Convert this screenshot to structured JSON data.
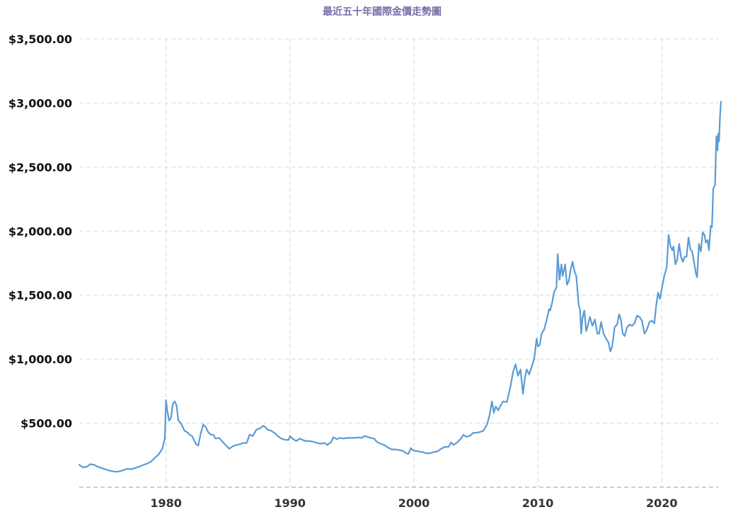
{
  "colors": {
    "title": "#7b6ca8",
    "line": "#5b9bd5",
    "grid": "#d9d9d9",
    "baseline": "#bdbdbd"
  },
  "chart_data": {
    "type": "line",
    "title": "最近五十年國際金價走勢圖",
    "xlabel": "",
    "ylabel": "",
    "grid": true,
    "x_range": [
      1973.0,
      2024.55
    ],
    "ylim": [
      0,
      3500
    ],
    "x_ticks": [
      {
        "value": 1980,
        "label": "1980"
      },
      {
        "value": 1990,
        "label": "1990"
      },
      {
        "value": 2000,
        "label": "2000"
      },
      {
        "value": 2010,
        "label": "2010"
      },
      {
        "value": 2020,
        "label": "2020"
      }
    ],
    "y_ticks": [
      {
        "value": 500,
        "label": "$500.00"
      },
      {
        "value": 1000,
        "label": "$1,000.00"
      },
      {
        "value": 1500,
        "label": "$1,500.00"
      },
      {
        "value": 2000,
        "label": "$2,000.00"
      },
      {
        "value": 2500,
        "label": "$2,500.00"
      },
      {
        "value": 3000,
        "label": "$3,000.00"
      },
      {
        "value": 3500,
        "label": "$3,500.00"
      }
    ],
    "series": [
      {
        "points": [
          [
            1973.0,
            175
          ],
          [
            1973.3,
            155
          ],
          [
            1973.6,
            160
          ],
          [
            1973.9,
            180
          ],
          [
            1974.2,
            175
          ],
          [
            1974.5,
            160
          ],
          [
            1974.8,
            150
          ],
          [
            1975.1,
            140
          ],
          [
            1975.4,
            130
          ],
          [
            1975.7,
            125
          ],
          [
            1976.0,
            120
          ],
          [
            1976.3,
            125
          ],
          [
            1976.6,
            135
          ],
          [
            1976.9,
            145
          ],
          [
            1977.2,
            140
          ],
          [
            1977.5,
            150
          ],
          [
            1977.8,
            160
          ],
          [
            1978.2,
            175
          ],
          [
            1978.5,
            185
          ],
          [
            1978.8,
            200
          ],
          [
            1979.1,
            230
          ],
          [
            1979.4,
            255
          ],
          [
            1979.7,
            300
          ],
          [
            1979.9,
            380
          ],
          [
            1980.0,
            680
          ],
          [
            1980.1,
            600
          ],
          [
            1980.25,
            520
          ],
          [
            1980.4,
            540
          ],
          [
            1980.55,
            650
          ],
          [
            1980.7,
            670
          ],
          [
            1980.85,
            640
          ],
          [
            1981.0,
            520
          ],
          [
            1981.2,
            500
          ],
          [
            1981.5,
            440
          ],
          [
            1981.7,
            430
          ],
          [
            1981.9,
            410
          ],
          [
            1982.1,
            400
          ],
          [
            1982.4,
            340
          ],
          [
            1982.6,
            325
          ],
          [
            1982.8,
            420
          ],
          [
            1983.0,
            490
          ],
          [
            1983.2,
            470
          ],
          [
            1983.4,
            430
          ],
          [
            1983.6,
            410
          ],
          [
            1983.8,
            410
          ],
          [
            1984.0,
            380
          ],
          [
            1984.3,
            385
          ],
          [
            1984.6,
            350
          ],
          [
            1984.9,
            320
          ],
          [
            1985.1,
            300
          ],
          [
            1985.4,
            320
          ],
          [
            1985.7,
            330
          ],
          [
            1985.95,
            335
          ],
          [
            1986.2,
            345
          ],
          [
            1986.5,
            345
          ],
          [
            1986.75,
            410
          ],
          [
            1987.0,
            400
          ],
          [
            1987.3,
            450
          ],
          [
            1987.6,
            460
          ],
          [
            1987.85,
            480
          ],
          [
            1988.0,
            470
          ],
          [
            1988.2,
            450
          ],
          [
            1988.5,
            440
          ],
          [
            1988.8,
            420
          ],
          [
            1989.0,
            400
          ],
          [
            1989.3,
            380
          ],
          [
            1989.6,
            370
          ],
          [
            1989.9,
            370
          ],
          [
            1990.0,
            400
          ],
          [
            1990.2,
            380
          ],
          [
            1990.5,
            360
          ],
          [
            1990.8,
            380
          ],
          [
            1991.0,
            370
          ],
          [
            1991.3,
            360
          ],
          [
            1991.6,
            360
          ],
          [
            1991.9,
            355
          ],
          [
            1992.2,
            345
          ],
          [
            1992.5,
            340
          ],
          [
            1992.8,
            345
          ],
          [
            1993.0,
            330
          ],
          [
            1993.3,
            350
          ],
          [
            1993.5,
            390
          ],
          [
            1993.8,
            375
          ],
          [
            1994.0,
            385
          ],
          [
            1994.3,
            380
          ],
          [
            1994.6,
            385
          ],
          [
            1994.9,
            385
          ],
          [
            1995.2,
            385
          ],
          [
            1995.5,
            388
          ],
          [
            1995.8,
            385
          ],
          [
            1996.0,
            400
          ],
          [
            1996.2,
            395
          ],
          [
            1996.5,
            385
          ],
          [
            1996.8,
            380
          ],
          [
            1997.0,
            355
          ],
          [
            1997.3,
            340
          ],
          [
            1997.6,
            330
          ],
          [
            1997.9,
            310
          ],
          [
            1998.2,
            295
          ],
          [
            1998.5,
            295
          ],
          [
            1998.8,
            290
          ],
          [
            1999.1,
            285
          ],
          [
            1999.4,
            265
          ],
          [
            1999.55,
            260
          ],
          [
            1999.75,
            305
          ],
          [
            1999.9,
            290
          ],
          [
            2000.1,
            285
          ],
          [
            2000.4,
            280
          ],
          [
            2000.7,
            275
          ],
          [
            2001.0,
            265
          ],
          [
            2001.3,
            265
          ],
          [
            2001.6,
            275
          ],
          [
            2001.9,
            280
          ],
          [
            2002.2,
            300
          ],
          [
            2002.5,
            315
          ],
          [
            2002.8,
            315
          ],
          [
            2003.0,
            350
          ],
          [
            2003.2,
            330
          ],
          [
            2003.5,
            350
          ],
          [
            2003.8,
            380
          ],
          [
            2004.0,
            410
          ],
          [
            2004.2,
            395
          ],
          [
            2004.5,
            400
          ],
          [
            2004.8,
            425
          ],
          [
            2005.0,
            425
          ],
          [
            2005.3,
            430
          ],
          [
            2005.6,
            440
          ],
          [
            2005.9,
            490
          ],
          [
            2006.1,
            560
          ],
          [
            2006.3,
            670
          ],
          [
            2006.45,
            580
          ],
          [
            2006.6,
            630
          ],
          [
            2006.8,
            600
          ],
          [
            2007.0,
            640
          ],
          [
            2007.2,
            670
          ],
          [
            2007.5,
            665
          ],
          [
            2007.8,
            790
          ],
          [
            2008.0,
            900
          ],
          [
            2008.2,
            960
          ],
          [
            2008.4,
            870
          ],
          [
            2008.6,
            920
          ],
          [
            2008.8,
            730
          ],
          [
            2008.95,
            850
          ],
          [
            2009.1,
            920
          ],
          [
            2009.3,
            880
          ],
          [
            2009.5,
            940
          ],
          [
            2009.7,
            1000
          ],
          [
            2009.9,
            1160
          ],
          [
            2010.0,
            1100
          ],
          [
            2010.15,
            1110
          ],
          [
            2010.3,
            1200
          ],
          [
            2010.5,
            1230
          ],
          [
            2010.7,
            1300
          ],
          [
            2010.9,
            1390
          ],
          [
            2011.0,
            1380
          ],
          [
            2011.15,
            1440
          ],
          [
            2011.3,
            1520
          ],
          [
            2011.5,
            1560
          ],
          [
            2011.6,
            1820
          ],
          [
            2011.75,
            1620
          ],
          [
            2011.9,
            1740
          ],
          [
            2012.0,
            1650
          ],
          [
            2012.2,
            1740
          ],
          [
            2012.35,
            1580
          ],
          [
            2012.5,
            1610
          ],
          [
            2012.65,
            1700
          ],
          [
            2012.8,
            1760
          ],
          [
            2012.95,
            1690
          ],
          [
            2013.1,
            1650
          ],
          [
            2013.3,
            1420
          ],
          [
            2013.4,
            1390
          ],
          [
            2013.5,
            1200
          ],
          [
            2013.6,
            1320
          ],
          [
            2013.75,
            1380
          ],
          [
            2013.9,
            1220
          ],
          [
            2014.0,
            1250
          ],
          [
            2014.2,
            1330
          ],
          [
            2014.4,
            1260
          ],
          [
            2014.6,
            1310
          ],
          [
            2014.8,
            1200
          ],
          [
            2014.95,
            1200
          ],
          [
            2015.1,
            1290
          ],
          [
            2015.3,
            1200
          ],
          [
            2015.5,
            1160
          ],
          [
            2015.7,
            1130
          ],
          [
            2015.85,
            1060
          ],
          [
            2016.0,
            1100
          ],
          [
            2016.2,
            1250
          ],
          [
            2016.4,
            1270
          ],
          [
            2016.55,
            1350
          ],
          [
            2016.7,
            1310
          ],
          [
            2016.85,
            1200
          ],
          [
            2017.0,
            1180
          ],
          [
            2017.2,
            1250
          ],
          [
            2017.4,
            1270
          ],
          [
            2017.6,
            1260
          ],
          [
            2017.8,
            1280
          ],
          [
            2018.0,
            1340
          ],
          [
            2018.2,
            1330
          ],
          [
            2018.4,
            1300
          ],
          [
            2018.6,
            1200
          ],
          [
            2018.8,
            1230
          ],
          [
            2019.0,
            1290
          ],
          [
            2019.2,
            1300
          ],
          [
            2019.4,
            1280
          ],
          [
            2019.55,
            1420
          ],
          [
            2019.7,
            1520
          ],
          [
            2019.85,
            1470
          ],
          [
            2020.0,
            1550
          ],
          [
            2020.2,
            1650
          ],
          [
            2020.4,
            1720
          ],
          [
            2020.55,
            1970
          ],
          [
            2020.7,
            1880
          ],
          [
            2020.85,
            1850
          ],
          [
            2020.95,
            1880
          ],
          [
            2021.1,
            1740
          ],
          [
            2021.25,
            1780
          ],
          [
            2021.4,
            1900
          ],
          [
            2021.55,
            1800
          ],
          [
            2021.7,
            1760
          ],
          [
            2021.85,
            1800
          ],
          [
            2022.0,
            1800
          ],
          [
            2022.15,
            1950
          ],
          [
            2022.3,
            1860
          ],
          [
            2022.45,
            1840
          ],
          [
            2022.6,
            1760
          ],
          [
            2022.75,
            1670
          ],
          [
            2022.85,
            1640
          ],
          [
            2023.0,
            1900
          ],
          [
            2023.15,
            1840
          ],
          [
            2023.3,
            1990
          ],
          [
            2023.45,
            1970
          ],
          [
            2023.55,
            1910
          ],
          [
            2023.7,
            1930
          ],
          [
            2023.8,
            1850
          ],
          [
            2023.95,
            2040
          ],
          [
            2024.05,
            2030
          ],
          [
            2024.15,
            2330
          ],
          [
            2024.3,
            2360
          ],
          [
            2024.4,
            2740
          ],
          [
            2024.5,
            2630
          ],
          [
            2024.55,
            2760
          ],
          [
            2024.62,
            2700
          ],
          [
            2024.7,
            2900
          ],
          [
            2024.77,
            3010
          ]
        ]
      }
    ]
  }
}
